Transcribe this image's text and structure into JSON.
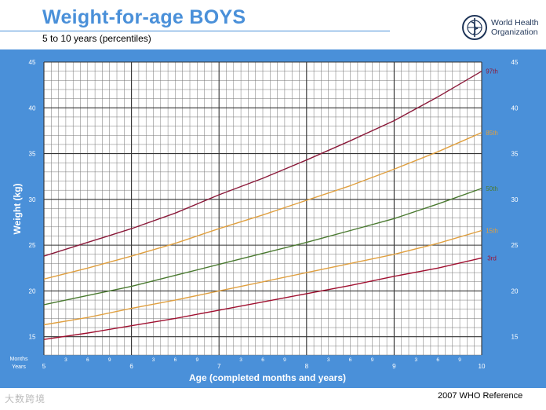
{
  "header": {
    "title": "Weight-for-age  BOYS",
    "subtitle": "5 to 10 years (percentiles)",
    "org_line1": "World Health",
    "org_line2": "Organization",
    "logo_icon": "who-emblem-icon"
  },
  "footer": {
    "reference": "2007 WHO Reference",
    "watermark": "大数跨境"
  },
  "colors": {
    "frame": "#4a90d9",
    "grid": "#555555",
    "p97": "#8b1a3a",
    "p85": "#e0a040",
    "p50": "#4a7a30",
    "p15": "#e0a040",
    "p3": "#a01030"
  },
  "chart_data": {
    "type": "line",
    "title": "Weight-for-age  BOYS",
    "subtitle": "5 to 10 years (percentiles)",
    "xlabel": "Age (completed months and years)",
    "ylabel": "Weight (kg)",
    "xlim": [
      5,
      10
    ],
    "ylim": [
      13,
      45
    ],
    "grid": true,
    "y_ticks": [
      15,
      20,
      25,
      30,
      35,
      40,
      45
    ],
    "x_row_label_months": "Months",
    "x_row_label_years": "Years",
    "x_ticks": [
      {
        "x": 5,
        "label": "5",
        "kind": "year"
      },
      {
        "x": 5.25,
        "label": "3",
        "kind": "month"
      },
      {
        "x": 5.5,
        "label": "6",
        "kind": "month"
      },
      {
        "x": 5.75,
        "label": "9",
        "kind": "month"
      },
      {
        "x": 6,
        "label": "6",
        "kind": "year"
      },
      {
        "x": 6.25,
        "label": "3",
        "kind": "month"
      },
      {
        "x": 6.5,
        "label": "6",
        "kind": "month"
      },
      {
        "x": 6.75,
        "label": "9",
        "kind": "month"
      },
      {
        "x": 7,
        "label": "7",
        "kind": "year"
      },
      {
        "x": 7.25,
        "label": "3",
        "kind": "month"
      },
      {
        "x": 7.5,
        "label": "6",
        "kind": "month"
      },
      {
        "x": 7.75,
        "label": "9",
        "kind": "month"
      },
      {
        "x": 8,
        "label": "8",
        "kind": "year"
      },
      {
        "x": 8.25,
        "label": "3",
        "kind": "month"
      },
      {
        "x": 8.5,
        "label": "6",
        "kind": "month"
      },
      {
        "x": 8.75,
        "label": "9",
        "kind": "month"
      },
      {
        "x": 9,
        "label": "9",
        "kind": "year"
      },
      {
        "x": 9.25,
        "label": "3",
        "kind": "month"
      },
      {
        "x": 9.5,
        "label": "6",
        "kind": "month"
      },
      {
        "x": 9.75,
        "label": "9",
        "kind": "month"
      },
      {
        "x": 10,
        "label": "10",
        "kind": "year"
      }
    ],
    "x": [
      5,
      5.5,
      6,
      6.5,
      7,
      7.5,
      8,
      8.5,
      9,
      9.5,
      10
    ],
    "series": [
      {
        "name": "97th",
        "color": "#8b1a3a",
        "values": [
          23.8,
          25.3,
          26.8,
          28.5,
          30.5,
          32.3,
          34.3,
          36.4,
          38.6,
          41.2,
          44.0
        ]
      },
      {
        "name": "85th",
        "color": "#e0a040",
        "values": [
          21.3,
          22.5,
          23.8,
          25.2,
          26.8,
          28.3,
          29.9,
          31.5,
          33.3,
          35.2,
          37.3
        ]
      },
      {
        "name": "50th",
        "color": "#4a7a30",
        "values": [
          18.5,
          19.5,
          20.5,
          21.7,
          22.9,
          24.1,
          25.3,
          26.6,
          27.9,
          29.5,
          31.2
        ]
      },
      {
        "name": "15th",
        "color": "#e0a040",
        "values": [
          16.3,
          17.1,
          18.1,
          19.0,
          20.0,
          21.0,
          22.0,
          23.0,
          24.0,
          25.2,
          26.6
        ]
      },
      {
        "name": "3rd",
        "color": "#a01030",
        "values": [
          14.7,
          15.4,
          16.2,
          17.0,
          17.9,
          18.8,
          19.7,
          20.6,
          21.6,
          22.5,
          23.6
        ]
      }
    ]
  }
}
